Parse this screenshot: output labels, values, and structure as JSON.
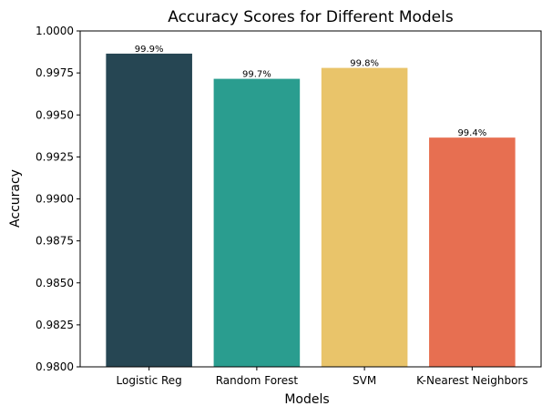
{
  "chart_data": {
    "type": "bar",
    "title": "Accuracy Scores for Different Models",
    "xlabel": "Models",
    "ylabel": "Accuracy",
    "categories": [
      "Logistic Reg",
      "Random Forest",
      "SVM",
      "K-Nearest Neighbors"
    ],
    "values": [
      0.99865,
      0.99715,
      0.9978,
      0.99365
    ],
    "data_labels": [
      "99.9%",
      "99.7%",
      "99.8%",
      "99.4%"
    ],
    "colors": [
      "#264653",
      "#2a9d8f",
      "#e9c46a",
      "#e76f51"
    ],
    "ylim": [
      0.98,
      1.0
    ],
    "yticks": [
      0.98,
      0.9825,
      0.985,
      0.9875,
      0.99,
      0.9925,
      0.995,
      0.9975,
      1.0
    ],
    "ytick_labels": [
      "0.9800",
      "0.9825",
      "0.9850",
      "0.9875",
      "0.9900",
      "0.9925",
      "0.9950",
      "0.9975",
      "1.0000"
    ],
    "grid": false,
    "legend": "none"
  }
}
